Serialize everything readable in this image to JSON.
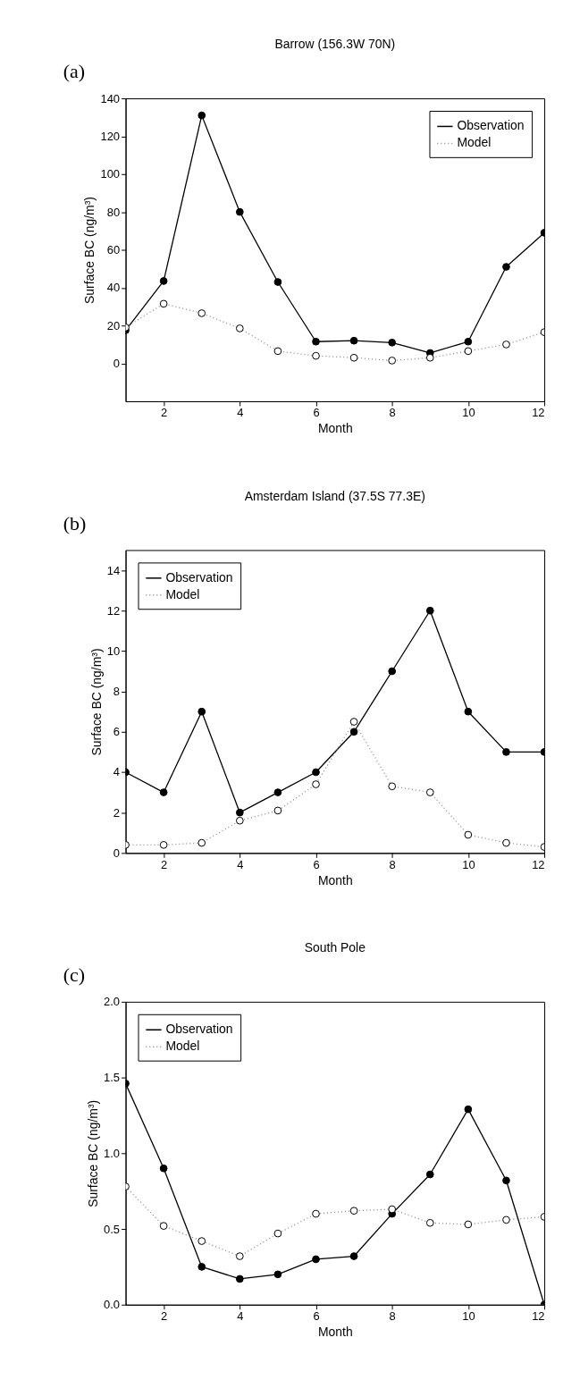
{
  "chart_data": [
    {
      "type": "line",
      "title": "Barrow (156.3W 70N)",
      "xlabel": "Month",
      "ylabel": "Surface BC (ng/m³)",
      "annotations": [
        "(a)"
      ],
      "x": [
        1,
        2,
        3,
        4,
        5,
        6,
        7,
        8,
        9,
        10,
        11,
        12
      ],
      "xlim": [
        1,
        12
      ],
      "xticks": [
        2,
        4,
        6,
        8,
        10,
        12
      ],
      "ylim": [
        -20,
        140
      ],
      "yticks": [
        0,
        20,
        40,
        60,
        80,
        100,
        120,
        140
      ],
      "grid": false,
      "legend": "top right",
      "marker": "circle",
      "series": [
        {
          "name": "Observation",
          "color": "#000000",
          "line_style": "solid",
          "values": [
            17.5,
            43.5,
            131,
            80,
            43,
            11.5,
            12,
            11,
            5.5,
            11.5,
            51,
            69
          ]
        },
        {
          "name": "Model",
          "color": "#888888",
          "line_style": "dotted",
          "values": [
            19,
            31.5,
            26.5,
            18.5,
            6.5,
            4,
            3,
            1.5,
            3,
            6.5,
            10,
            16.5
          ]
        }
      ]
    },
    {
      "type": "line",
      "title": "Amsterdam Island (37.5S 77.3E)",
      "xlabel": "Month",
      "ylabel": "Surface BC (ng/m³)",
      "annotations": [
        "(b)"
      ],
      "x": [
        1,
        2,
        3,
        4,
        5,
        6,
        7,
        8,
        9,
        10,
        11,
        12
      ],
      "xlim": [
        1,
        12
      ],
      "xticks": [
        2,
        4,
        6,
        8,
        10,
        12
      ],
      "ylim": [
        0,
        15
      ],
      "yticks": [
        0,
        2,
        4,
        6,
        8,
        10,
        12,
        14
      ],
      "grid": false,
      "legend": "top left",
      "marker": "circle",
      "series": [
        {
          "name": "Observation",
          "color": "#000000",
          "line_style": "solid",
          "values": [
            4,
            3,
            7,
            2,
            3,
            4,
            6,
            9,
            12,
            7,
            5,
            5
          ]
        },
        {
          "name": "Model",
          "color": "#888888",
          "line_style": "dotted",
          "values": [
            0.4,
            0.4,
            0.5,
            1.6,
            2.1,
            3.4,
            6.5,
            3.3,
            3.0,
            0.9,
            0.5,
            0.3
          ]
        }
      ]
    },
    {
      "type": "line",
      "title": "South Pole",
      "xlabel": "Month",
      "ylabel": "Surface BC (ng/m³)",
      "annotations": [
        "(c)"
      ],
      "x": [
        1,
        2,
        3,
        4,
        5,
        6,
        7,
        8,
        9,
        10,
        11,
        12
      ],
      "xlim": [
        1,
        12
      ],
      "xticks": [
        2,
        4,
        6,
        8,
        10,
        12
      ],
      "ylim": [
        0,
        2
      ],
      "yticks": [
        {
          "value": 0,
          "label": "0.0"
        },
        {
          "value": 0.5,
          "label": "0.5"
        },
        {
          "value": 1,
          "label": "1.0"
        },
        {
          "value": 1.5,
          "label": "1.5"
        },
        {
          "value": 2,
          "label": "2.0"
        }
      ],
      "grid": false,
      "legend": "top left",
      "marker": "circle",
      "series": [
        {
          "name": "Observation",
          "color": "#000000",
          "line_style": "solid",
          "values": [
            1.46,
            0.9,
            0.25,
            0.17,
            0.2,
            0.3,
            0.32,
            0.6,
            0.86,
            1.29,
            0.82,
            0
          ]
        },
        {
          "name": "Model",
          "color": "#888888",
          "line_style": "dotted",
          "values": [
            0.78,
            0.52,
            0.42,
            0.32,
            0.47,
            0.6,
            0.62,
            0.63,
            0.54,
            0.53,
            0.56,
            0.58
          ]
        }
      ]
    }
  ]
}
